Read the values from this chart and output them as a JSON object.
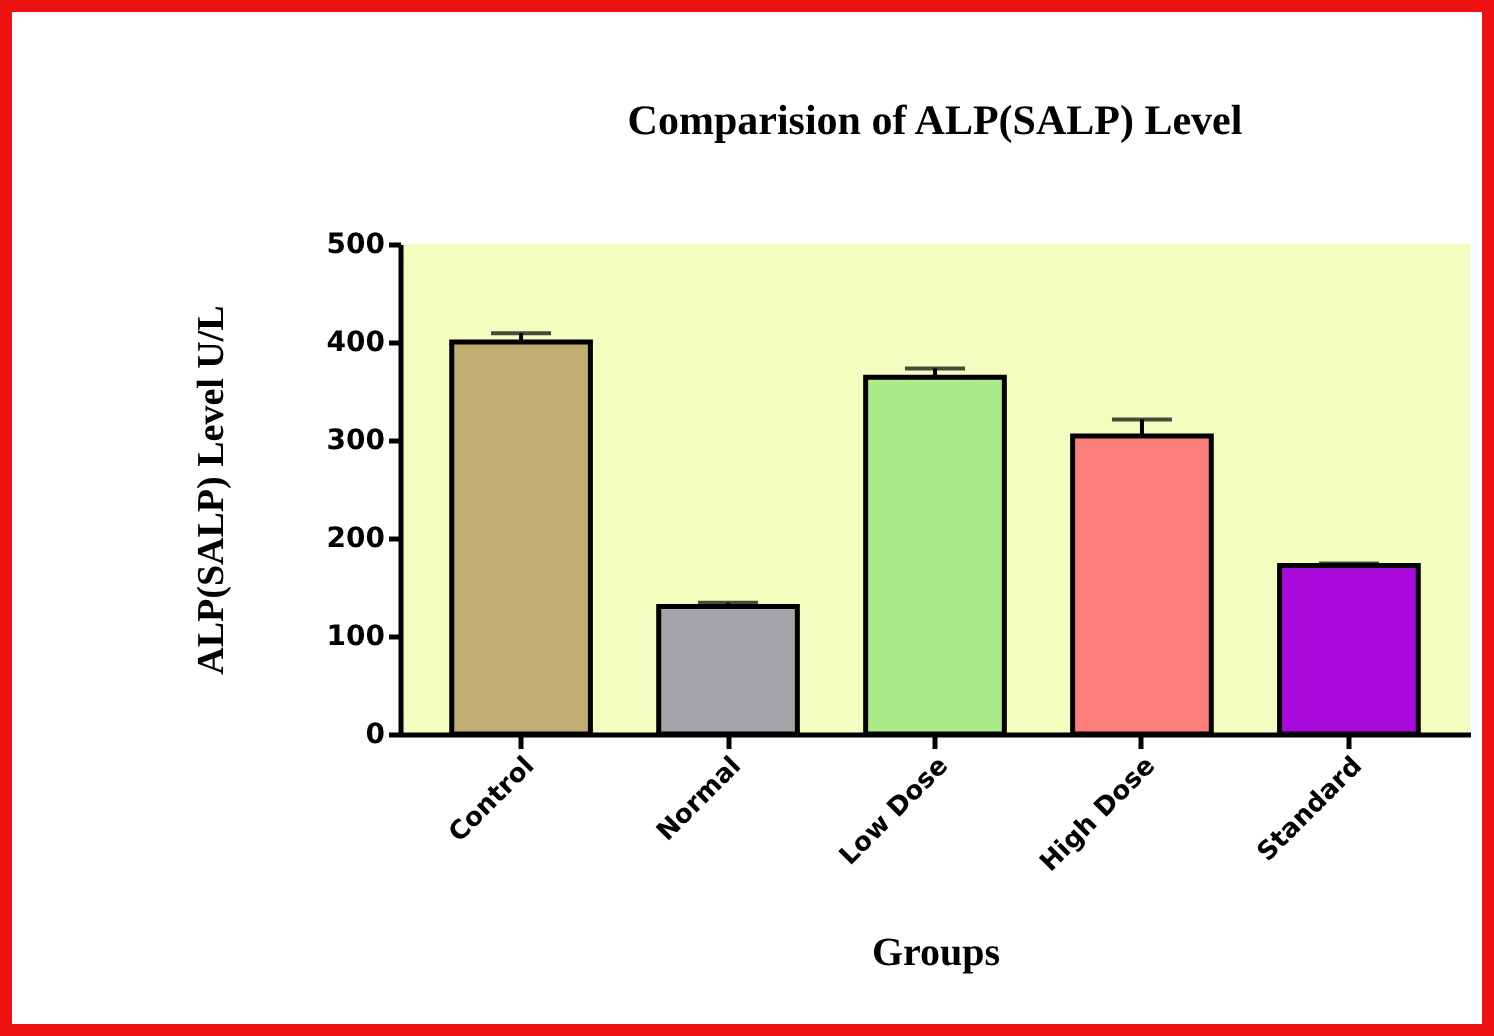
{
  "chart_data": {
    "type": "bar",
    "title": "Comparision of ALP(SALP) Level",
    "xlabel": "Groups",
    "ylabel": "ALP(SALP) Level U/L",
    "categories": [
      "Control",
      "Normal",
      "Low Dose",
      "High Dose",
      "Standard"
    ],
    "values": [
      400,
      130,
      364,
      304,
      172
    ],
    "colors": [
      "#bfad72",
      "#a3a3a8",
      "#abeb8b",
      "#fc7e7b",
      "#a80adb"
    ],
    "errors": [
      [
        400,
        409
      ],
      [
        130,
        134
      ],
      [
        364,
        373
      ],
      [
        304,
        321
      ],
      [
        172,
        174
      ]
    ],
    "ylim": [
      0,
      500
    ],
    "yticks": [
      0,
      100,
      200,
      300,
      400,
      500
    ],
    "grid": false
  }
}
